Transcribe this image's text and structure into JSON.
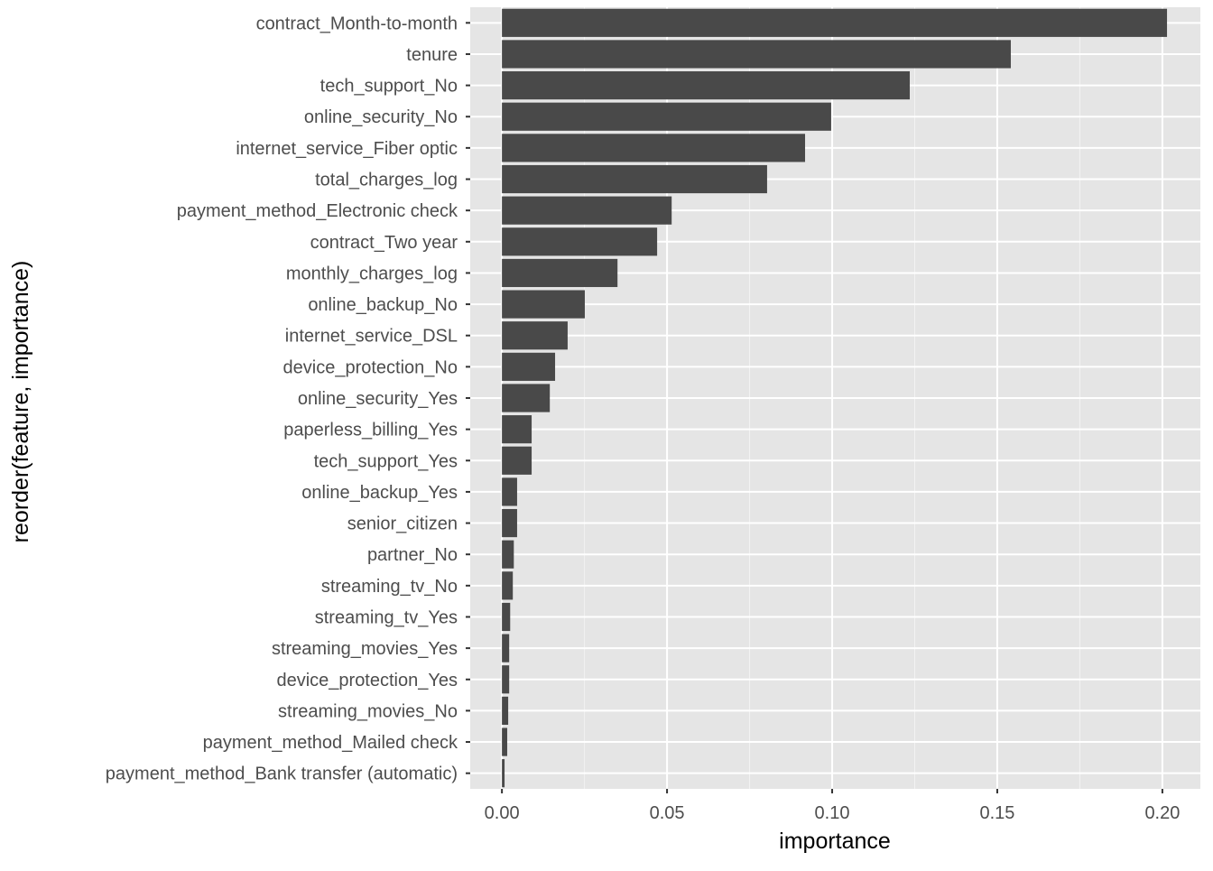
{
  "chart_data": {
    "type": "bar",
    "orientation": "horizontal",
    "title": "",
    "xlabel": "importance",
    "ylabel": "reorder(feature, importance)",
    "xlim": [
      -0.0096,
      0.2115
    ],
    "xticks": [
      0.0,
      0.05,
      0.1,
      0.15,
      0.2
    ],
    "xtick_labels": [
      "0.00",
      "0.05",
      "0.10",
      "0.15",
      "0.20"
    ],
    "grid": true,
    "bar_color": "#494949",
    "panel_color": "#e5e5e5",
    "categories": [
      "contract_Month-to-month",
      "tenure",
      "tech_support_No",
      "online_security_No",
      "internet_service_Fiber optic",
      "total_charges_log",
      "payment_method_Electronic check",
      "contract_Two year",
      "monthly_charges_log",
      "online_backup_No",
      "internet_service_DSL",
      "device_protection_No",
      "online_security_Yes",
      "paperless_billing_Yes",
      "tech_support_Yes",
      "online_backup_Yes",
      "senior_citizen",
      "partner_No",
      "streaming_tv_No",
      "streaming_tv_Yes",
      "streaming_movies_Yes",
      "device_protection_Yes",
      "streaming_movies_No",
      "payment_method_Mailed check",
      "payment_method_Bank transfer (automatic)"
    ],
    "values": [
      0.2014,
      0.1541,
      0.1235,
      0.0997,
      0.0918,
      0.0803,
      0.0514,
      0.047,
      0.035,
      0.0251,
      0.0199,
      0.0161,
      0.0145,
      0.009,
      0.009,
      0.0046,
      0.0046,
      0.0036,
      0.0033,
      0.0025,
      0.0022,
      0.0022,
      0.0019,
      0.0016,
      0.0008
    ]
  }
}
